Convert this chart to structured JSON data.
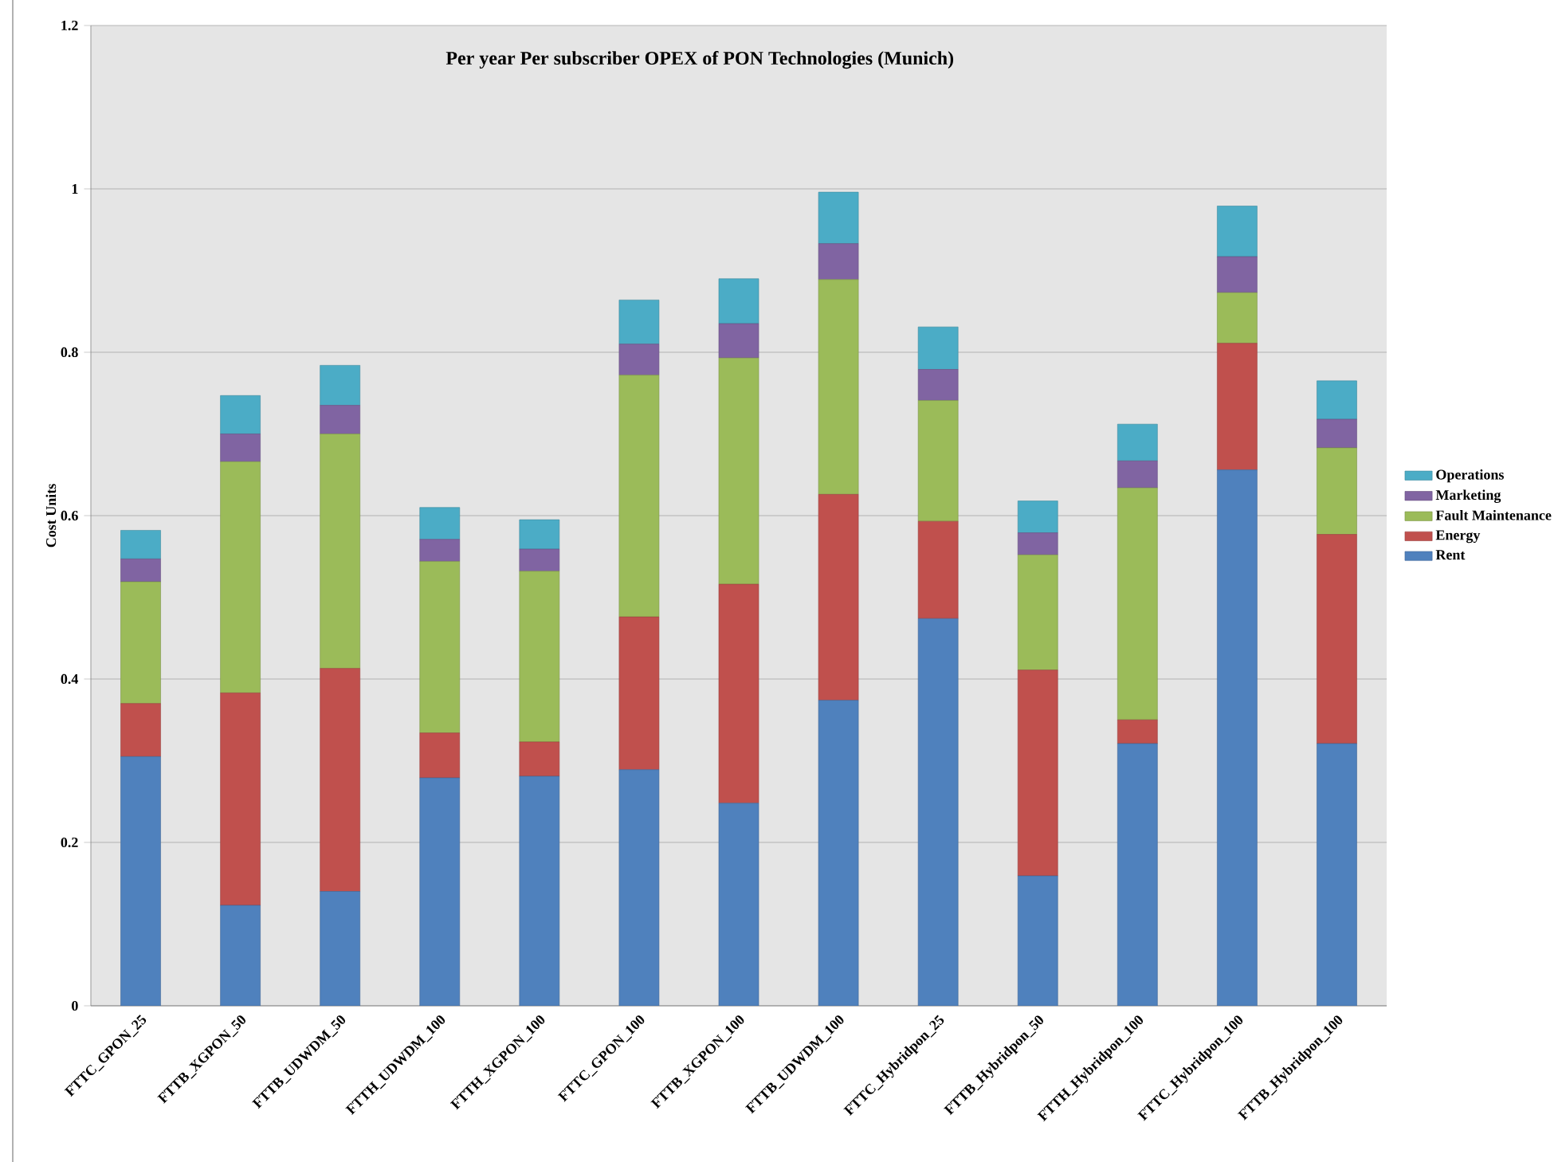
{
  "chart_data": {
    "type": "bar",
    "stacked": true,
    "title": "Per year Per subscriber OPEX of PON Technologies (Munich)",
    "ylabel": "Cost Units",
    "categories": [
      "FTTC_GPON_25",
      "FTTB_XGPON_50",
      "FTTB_UDWDM_50",
      "FTTH_UDWDM_100",
      "FTTH_XGPON_100",
      "FTTC_GPON_100",
      "FTTB_XGPON_100",
      "FTTB_UDWDM_100",
      "FTTC_Hybridpon_25",
      "FTTB_Hybridpon_50",
      "FTTH_Hybridpon_100",
      "FTTC_Hybridpon_100",
      "FTTB_Hybridpon_100"
    ],
    "series": [
      {
        "name": "Rent",
        "color": "#4f81bd",
        "values": [
          0.305,
          0.123,
          0.14,
          0.279,
          0.281,
          0.289,
          0.248,
          0.374,
          0.474,
          0.159,
          0.321,
          0.656,
          0.321
        ]
      },
      {
        "name": "Energy",
        "color": "#c0504d",
        "values": [
          0.065,
          0.26,
          0.273,
          0.055,
          0.042,
          0.187,
          0.268,
          0.252,
          0.119,
          0.252,
          0.029,
          0.155,
          0.256
        ]
      },
      {
        "name": "Fault Maintenance",
        "color": "#9bbb59",
        "values": [
          0.149,
          0.283,
          0.287,
          0.21,
          0.209,
          0.296,
          0.277,
          0.263,
          0.148,
          0.141,
          0.284,
          0.062,
          0.106
        ]
      },
      {
        "name": "Marketing",
        "color": "#8064a2",
        "values": [
          0.028,
          0.034,
          0.035,
          0.027,
          0.027,
          0.038,
          0.042,
          0.044,
          0.038,
          0.027,
          0.033,
          0.044,
          0.035
        ]
      },
      {
        "name": "Operations",
        "color": "#4bacc6",
        "values": [
          0.035,
          0.047,
          0.049,
          0.039,
          0.036,
          0.054,
          0.055,
          0.063,
          0.052,
          0.039,
          0.045,
          0.062,
          0.047
        ]
      }
    ],
    "ylim": [
      0,
      1.2
    ],
    "yticks": [
      0,
      0.2,
      0.4,
      0.6,
      0.8,
      1,
      1.2
    ],
    "grid": "y",
    "legend": "right"
  }
}
